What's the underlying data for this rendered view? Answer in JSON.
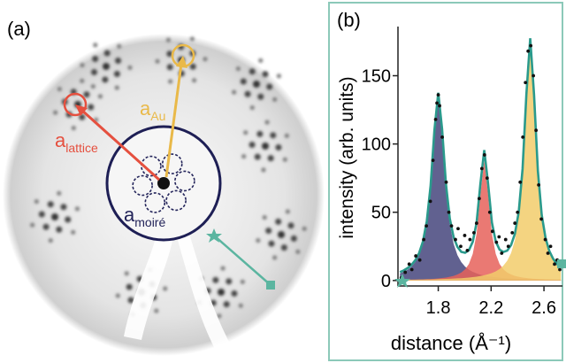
{
  "panel_a": {
    "label": "(a)",
    "annotations": [
      {
        "text": "a",
        "subscript": "lattice",
        "color": "#e5503f"
      },
      {
        "text": "a",
        "subscript": "Au",
        "color": "#e9b949"
      },
      {
        "text": "a",
        "subscript": "moiré",
        "color": "#23245a"
      }
    ]
  },
  "chart_data": {
    "type": "line",
    "panel_label": "(b)",
    "xlabel": "distance (Å⁻¹)",
    "ylabel": "intensity (arb. units)",
    "xlim": [
      1.495,
      2.74
    ],
    "xticks": [
      1.8,
      2.2,
      2.6
    ],
    "ylim": [
      -4,
      186
    ],
    "yticks": [
      0,
      50,
      100,
      150
    ],
    "grid": false,
    "x": [
      1.51,
      1.539,
      1.568,
      1.597,
      1.626,
      1.655,
      1.684,
      1.713,
      1.742,
      1.771,
      1.8,
      1.829,
      1.858,
      1.887,
      1.916,
      1.945,
      1.974,
      2.003,
      2.032,
      2.061,
      2.09,
      2.119,
      2.148,
      2.177,
      2.206,
      2.235,
      2.264,
      2.293,
      2.322,
      2.351,
      2.38,
      2.409,
      2.438,
      2.467,
      2.496,
      2.525,
      2.554,
      2.583,
      2.612,
      2.641,
      2.67,
      2.699,
      2.728
    ],
    "series": [
      {
        "type": "area",
        "color": "#45457d",
        "values": [
          5.2,
          6.4,
          7.9,
          10.2,
          13.5,
          18.6,
          27,
          41.5,
          67.5,
          108,
          135,
          108,
          67.5,
          41.5,
          27,
          18.6,
          13.5,
          10.2,
          7.9,
          6.4,
          5.2,
          4.3,
          3.6,
          3.1,
          2.7,
          2.4,
          2.1,
          1.8,
          1.6,
          1.5,
          1.3,
          1.2,
          1.1,
          1.0,
          0.9,
          0.9,
          0.8,
          0.7,
          0.7,
          0.6,
          0.6,
          0.6,
          0.5
        ]
      },
      {
        "type": "area",
        "color": "#e6625b",
        "values": [
          0.5,
          0.5,
          0.6,
          0.6,
          0.7,
          0.8,
          0.9,
          1.0,
          1.1,
          1.3,
          1.5,
          1.8,
          2.2,
          2.7,
          3.4,
          4.4,
          5.8,
          8.2,
          12.1,
          19.5,
          34.3,
          63.3,
          88,
          63.3,
          34.3,
          19.5,
          12.1,
          8.2,
          5.8,
          4.4,
          3.4,
          2.7,
          2.2,
          1.8,
          1.5,
          1.3,
          1.1,
          1.0,
          0.9,
          0.8,
          0.7,
          0.6,
          0.6
        ]
      },
      {
        "type": "area",
        "color": "#f2cd6b",
        "values": [
          0.5,
          0.5,
          0.6,
          0.6,
          0.6,
          0.7,
          0.7,
          0.8,
          0.8,
          0.9,
          1.0,
          1.1,
          1.2,
          1.3,
          1.4,
          1.6,
          1.7,
          1.9,
          2.2,
          2.5,
          2.8,
          3.3,
          3.9,
          4.6,
          5.5,
          6.7,
          8.4,
          10.9,
          14.5,
          20.1,
          29.5,
          46.3,
          78.3,
          133.7,
          175,
          133.7,
          78.3,
          46.3,
          29.5,
          20.1,
          14.5,
          10.9,
          8.4
        ]
      },
      {
        "type": "line",
        "color": "#2a9a8c",
        "values": [
          6.2,
          7.4,
          9.1,
          11.4,
          14.8,
          20.1,
          28.6,
          43.3,
          69.4,
          110.2,
          137.5,
          110.9,
          70.9,
          45.5,
          31.8,
          24.6,
          21,
          20.3,
          22.2,
          28.4,
          42.3,
          70.9,
          95.5,
          71,
          42.5,
          28.6,
          22.6,
          20.9,
          21.9,
          26,
          34.2,
          50.2,
          81.6,
          136.5,
          177.4,
          135.9,
          80.2,
          48,
          31.1,
          21.5,
          15.8,
          12.1,
          9.5
        ]
      },
      {
        "type": "scatter",
        "color": "#111111",
        "x": [
          1.52,
          1.55,
          1.58,
          1.6,
          1.63,
          1.66,
          1.69,
          1.71,
          1.74,
          1.76,
          1.78,
          1.79,
          1.8,
          1.81,
          1.83,
          1.86,
          1.88,
          1.9,
          1.93,
          1.95,
          1.97,
          2.0,
          2.02,
          2.04,
          2.07,
          2.09,
          2.11,
          2.13,
          2.15,
          2.17,
          2.19,
          2.21,
          2.24,
          2.26,
          2.28,
          2.31,
          2.33,
          2.36,
          2.38,
          2.4,
          2.42,
          2.44,
          2.46,
          2.48,
          2.5,
          2.52,
          2.54,
          2.56,
          2.58,
          2.61,
          2.63,
          2.65,
          2.68,
          2.7,
          2.72
        ],
        "values": [
          2,
          6,
          12,
          8,
          18,
          15,
          30,
          40,
          58,
          88,
          118,
          130,
          136,
          128,
          105,
          72,
          50,
          40,
          30,
          38,
          25,
          33,
          22,
          30,
          35,
          42,
          60,
          82,
          92,
          75,
          50,
          36,
          28,
          32,
          20,
          30,
          25,
          35,
          42,
          50,
          72,
          105,
          145,
          168,
          172,
          150,
          110,
          70,
          45,
          30,
          20,
          25,
          12,
          15,
          8
        ]
      }
    ]
  }
}
